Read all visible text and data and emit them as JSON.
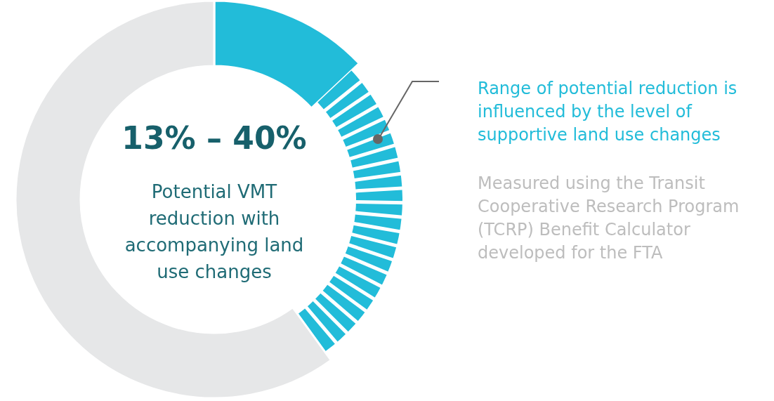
{
  "chart_data": {
    "type": "donut",
    "title": "13% – 40%",
    "subtitle": "Potential VMT reduction with accompanying land use changes",
    "categories": [
      null,
      null,
      null
    ],
    "values": [
      13,
      27,
      60
    ],
    "colors": [
      "#22bcd9",
      "#22bcd9",
      "#e6e7e8"
    ],
    "annotations": [
      "Range of potential reduction is influenced by the level of supportive land use changes",
      "Measured using the Transit Cooperative Research Program (TCRP) Benefit Calculator developed for the FTA"
    ]
  }
}
